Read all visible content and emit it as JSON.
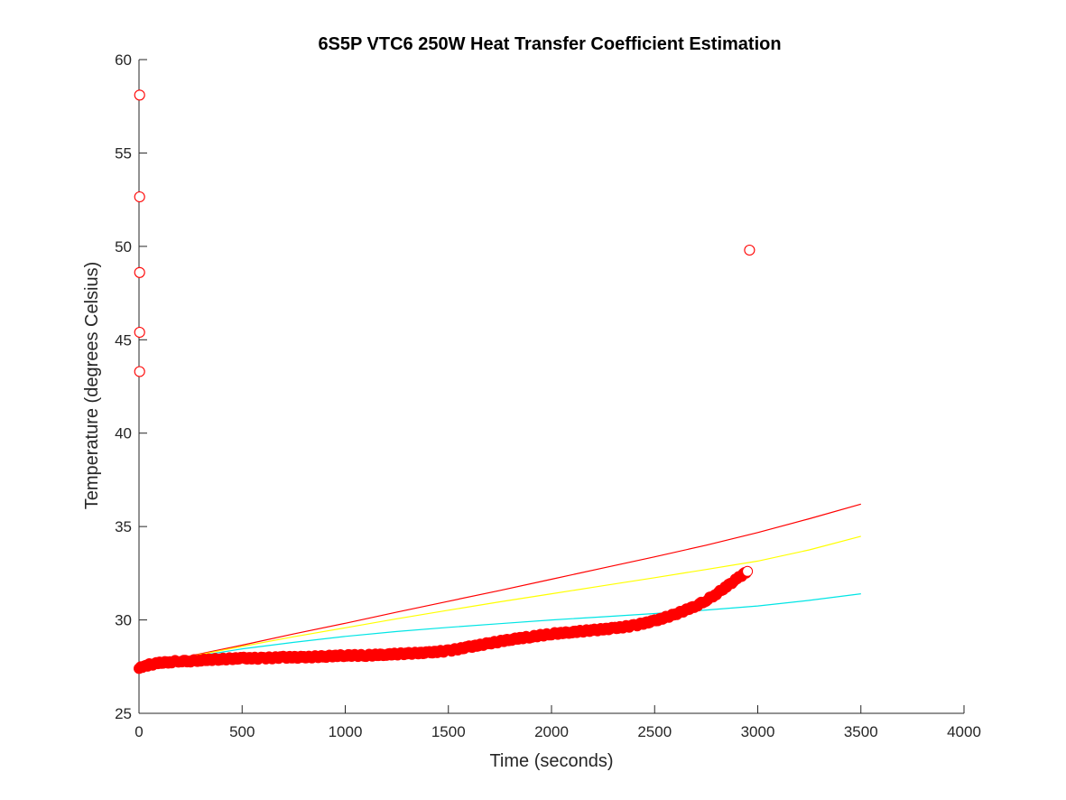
{
  "chart_data": {
    "type": "scatter",
    "title": "6S5P VTC6 250W Heat Transfer Coefficient Estimation",
    "xlabel": "Time (seconds)",
    "ylabel": "Temperature (degrees Celsius)",
    "xlim": [
      0,
      4000
    ],
    "ylim": [
      25,
      60
    ],
    "xticks": [
      0,
      500,
      1000,
      1500,
      2000,
      2500,
      3000,
      3500,
      4000
    ],
    "yticks": [
      25,
      30,
      35,
      40,
      45,
      50,
      55,
      60
    ],
    "grid": false,
    "legend": "none",
    "series": [
      {
        "kind": "line",
        "color": "#ff0000",
        "x": [
          0,
          250,
          500,
          750,
          1000,
          1250,
          1500,
          1750,
          2000,
          2250,
          2500,
          2750,
          3000,
          3250,
          3500
        ],
        "y": [
          27.5,
          28.08,
          28.65,
          29.25,
          29.82,
          30.42,
          31.0,
          31.58,
          32.18,
          32.78,
          33.38,
          34.0,
          34.68,
          35.42,
          36.2
        ]
      },
      {
        "kind": "line",
        "color": "#ffff00",
        "x": [
          0,
          250,
          500,
          750,
          1000,
          1250,
          1500,
          1750,
          2000,
          2250,
          2500,
          2750,
          3000,
          3250,
          3500
        ],
        "y": [
          27.5,
          28.05,
          28.58,
          29.1,
          29.58,
          30.06,
          30.52,
          30.97,
          31.4,
          31.83,
          32.26,
          32.7,
          33.15,
          33.75,
          34.48
        ]
      },
      {
        "kind": "line",
        "color": "#00e5e5",
        "x": [
          0,
          250,
          500,
          750,
          1000,
          1250,
          1500,
          1750,
          2000,
          2250,
          2500,
          2750,
          3000,
          3250,
          3500
        ],
        "y": [
          27.5,
          28.0,
          28.45,
          28.8,
          29.12,
          29.38,
          29.6,
          29.8,
          30.0,
          30.17,
          30.34,
          30.53,
          30.75,
          31.05,
          31.4
        ]
      },
      {
        "kind": "markers",
        "color": "#ff0000",
        "marker": "circle",
        "x": [
          0,
          25,
          50,
          100,
          150,
          200,
          250,
          300,
          400,
          500,
          600,
          700,
          800,
          900,
          1000,
          1100,
          1200,
          1300,
          1400,
          1500,
          1600,
          1700,
          1800,
          1900,
          2000,
          2100,
          2200,
          2300,
          2400,
          2500,
          2600,
          2700,
          2750,
          2800,
          2850,
          2900,
          2930,
          2950
        ],
        "y": [
          27.4,
          27.5,
          27.6,
          27.7,
          27.75,
          27.8,
          27.8,
          27.85,
          27.9,
          27.95,
          27.95,
          28.0,
          28.0,
          28.05,
          28.1,
          28.1,
          28.15,
          28.2,
          28.25,
          28.35,
          28.55,
          28.75,
          28.95,
          29.1,
          29.25,
          29.35,
          29.45,
          29.55,
          29.7,
          29.95,
          30.3,
          30.75,
          31.05,
          31.4,
          31.8,
          32.2,
          32.45,
          32.6
        ]
      },
      {
        "kind": "outliers",
        "color": "#ff0000",
        "marker": "circle",
        "x": [
          3,
          3,
          3,
          3,
          3,
          2960
        ],
        "y": [
          58.1,
          52.65,
          48.6,
          45.4,
          43.3,
          49.8
        ]
      }
    ]
  }
}
